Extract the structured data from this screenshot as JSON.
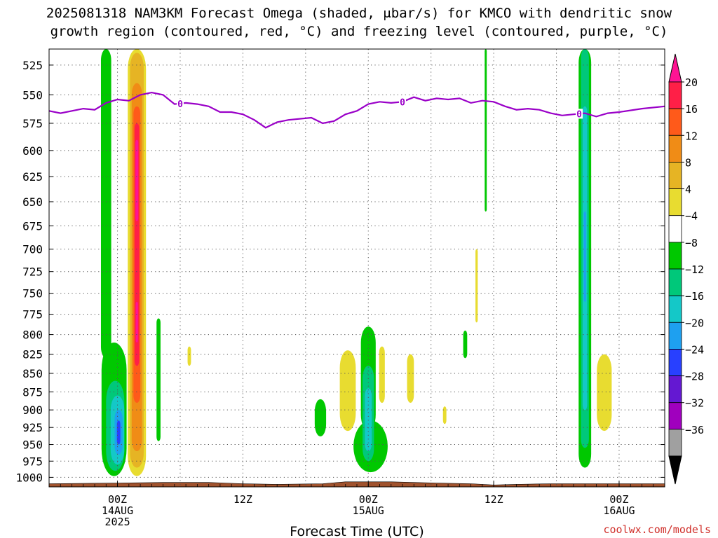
{
  "chart_data": {
    "type": "heatmap",
    "title_line1": "2025081318 NAM3KM Forecast Omega (shaded, μbar/s) for KMCO with dendritic snow",
    "title_line2": "growth region (contoured, red, °C) and freezing level (contoured, purple, °C)",
    "xlabel": "Forecast Time (UTC)",
    "credit": "coolwx.com/models",
    "y_axis": {
      "ylim": [
        1015,
        512
      ],
      "ticks": [
        525,
        550,
        575,
        600,
        625,
        650,
        675,
        700,
        725,
        750,
        775,
        800,
        825,
        850,
        875,
        900,
        925,
        950,
        975,
        1000
      ],
      "grid": true
    },
    "x_axis": {
      "xlim": [
        -6,
        48
      ],
      "major_ticks": [
        {
          "hour": 0,
          "lines": [
            "00Z",
            "14AUG",
            "2025"
          ]
        },
        {
          "hour": 11,
          "lines": [
            "12Z"
          ]
        },
        {
          "hour": 22,
          "lines": [
            "00Z",
            "15AUG"
          ]
        },
        {
          "hour": 33,
          "lines": [
            "12Z"
          ]
        },
        {
          "hour": 44,
          "lines": [
            "00Z",
            "16AUG"
          ]
        }
      ],
      "grid_hours": [
        0,
        5.5,
        11,
        16.5,
        22,
        27.5,
        33,
        38.5,
        44
      ],
      "grid": true
    },
    "colorbar": {
      "labels": [
        "20",
        "16",
        "12",
        "8",
        "4",
        "−4",
        "−8",
        "−12",
        "−16",
        "−20",
        "−24",
        "−28",
        "−32",
        "−36"
      ],
      "colors": [
        "#ff1f47",
        "#ff5a1a",
        "#f08c16",
        "#e6b424",
        "#e8dc30",
        "#ffffff",
        "#00c800",
        "#00c87a",
        "#14c8c8",
        "#1ea0f0",
        "#2840ff",
        "#6418d2",
        "#a000be",
        "#a0a0a0"
      ],
      "top_color": "#ff1493",
      "bottom_color": "#000000"
    },
    "freezing_level": {
      "color": "#9a00c8",
      "label": "0",
      "label_hours": [
        5.5,
        25,
        40.5
      ],
      "points": [
        [
          -6,
          564
        ],
        [
          -5,
          566
        ],
        [
          -3,
          562
        ],
        [
          -2,
          563
        ],
        [
          -1,
          557
        ],
        [
          0,
          554
        ],
        [
          1,
          555
        ],
        [
          2,
          550
        ],
        [
          3,
          548
        ],
        [
          4,
          550
        ],
        [
          5,
          558
        ],
        [
          6,
          557
        ],
        [
          7,
          558
        ],
        [
          8,
          560
        ],
        [
          9,
          565
        ],
        [
          10,
          565
        ],
        [
          11,
          567
        ],
        [
          12,
          572
        ],
        [
          13,
          579
        ],
        [
          14,
          574
        ],
        [
          15,
          572
        ],
        [
          17,
          570
        ],
        [
          18,
          575
        ],
        [
          19,
          573
        ],
        [
          20,
          567
        ],
        [
          21,
          564
        ],
        [
          22,
          558
        ],
        [
          23,
          556
        ],
        [
          24,
          557
        ],
        [
          25,
          556
        ],
        [
          26,
          552
        ],
        [
          27,
          555
        ],
        [
          28,
          553
        ],
        [
          29,
          554
        ],
        [
          30,
          553
        ],
        [
          31,
          557
        ],
        [
          32,
          555
        ],
        [
          33,
          556
        ],
        [
          34,
          560
        ],
        [
          35,
          563
        ],
        [
          36,
          562
        ],
        [
          37,
          563
        ],
        [
          38,
          566
        ],
        [
          39,
          568
        ],
        [
          40,
          567
        ],
        [
          41,
          566
        ],
        [
          42,
          569
        ],
        [
          43,
          566
        ],
        [
          44,
          565
        ],
        [
          46,
          562
        ],
        [
          48,
          560
        ]
      ]
    },
    "shaded_regions": [
      {
        "level": "-8",
        "color": "#00c800",
        "hour": -1.0,
        "width_h": 0.9,
        "p_top": 512,
        "p_bot": 830
      },
      {
        "level": "-8",
        "color": "#00c800",
        "hour": -0.3,
        "width_h": 2.2,
        "p_top": 810,
        "p_bot": 998
      },
      {
        "level": "-12",
        "color": "#00c87a",
        "hour": -0.2,
        "width_h": 1.6,
        "p_top": 860,
        "p_bot": 990
      },
      {
        "level": "-16",
        "color": "#14c8c8",
        "hour": 0.0,
        "width_h": 1.2,
        "p_top": 880,
        "p_bot": 980
      },
      {
        "level": "-20",
        "color": "#1ea0f0",
        "hour": 0.1,
        "width_h": 0.7,
        "p_top": 900,
        "p_bot": 965
      },
      {
        "level": "-24",
        "color": "#2840ff",
        "hour": 0.1,
        "width_h": 0.3,
        "p_top": 915,
        "p_bot": 950
      },
      {
        "level": "4",
        "color": "#e8dc30",
        "hour": 1.7,
        "width_h": 1.6,
        "p_top": 512,
        "p_bot": 998
      },
      {
        "level": "8",
        "color": "#e6b424",
        "hour": 1.7,
        "width_h": 1.2,
        "p_top": 515,
        "p_bot": 985
      },
      {
        "level": "12",
        "color": "#f08c16",
        "hour": 1.7,
        "width_h": 0.9,
        "p_top": 540,
        "p_bot": 960
      },
      {
        "level": "16",
        "color": "#ff5a1a",
        "hour": 1.7,
        "width_h": 0.6,
        "p_top": 560,
        "p_bot": 890
      },
      {
        "level": "20",
        "color": "#ff1f47",
        "hour": 1.7,
        "width_h": 0.4,
        "p_top": 575,
        "p_bot": 840
      },
      {
        "level": "20+",
        "color": "#ff1493",
        "hour": 1.7,
        "width_h": 0.25,
        "p_top": 590,
        "p_bot": 670
      },
      {
        "level": "20+",
        "color": "#ff1493",
        "hour": 1.7,
        "width_h": 0.2,
        "p_top": 760,
        "p_bot": 810
      },
      {
        "level": "-8",
        "color": "#00c800",
        "hour": 3.6,
        "width_h": 0.35,
        "p_top": 780,
        "p_bot": 945
      },
      {
        "level": "4",
        "color": "#e8dc30",
        "hour": 6.3,
        "width_h": 0.3,
        "p_top": 815,
        "p_bot": 840
      },
      {
        "level": "-8",
        "color": "#00c800",
        "hour": 17.8,
        "width_h": 1.0,
        "p_top": 885,
        "p_bot": 938
      },
      {
        "level": "4",
        "color": "#e8dc30",
        "hour": 20.2,
        "width_h": 1.4,
        "p_top": 820,
        "p_bot": 930
      },
      {
        "level": "-8",
        "color": "#00c800",
        "hour": 22.2,
        "width_h": 3.0,
        "p_top": 915,
        "p_bot": 992
      },
      {
        "level": "-8",
        "color": "#00c800",
        "hour": 22.0,
        "width_h": 1.3,
        "p_top": 790,
        "p_bot": 930
      },
      {
        "level": "-12",
        "color": "#00c87a",
        "hour": 22.0,
        "width_h": 1.0,
        "p_top": 840,
        "p_bot": 975
      },
      {
        "level": "-16",
        "color": "#14c8c8",
        "hour": 22.0,
        "width_h": 0.6,
        "p_top": 870,
        "p_bot": 960
      },
      {
        "level": "4",
        "color": "#e8dc30",
        "hour": 23.2,
        "width_h": 0.5,
        "p_top": 815,
        "p_bot": 890
      },
      {
        "level": "4",
        "color": "#e8dc30",
        "hour": 25.7,
        "width_h": 0.6,
        "p_top": 825,
        "p_bot": 890
      },
      {
        "level": "4",
        "color": "#e8dc30",
        "hour": 28.7,
        "width_h": 0.3,
        "p_top": 895,
        "p_bot": 920
      },
      {
        "level": "-8",
        "color": "#00c800",
        "hour": 30.5,
        "width_h": 0.35,
        "p_top": 795,
        "p_bot": 830
      },
      {
        "level": "4",
        "color": "#e8dc30",
        "hour": 31.5,
        "width_h": 0.2,
        "p_top": 700,
        "p_bot": 785
      },
      {
        "level": "-8",
        "color": "#00c800",
        "hour": 32.3,
        "width_h": 0.18,
        "p_top": 512,
        "p_bot": 660
      },
      {
        "level": "-8",
        "color": "#00c800",
        "hour": 41.0,
        "width_h": 1.1,
        "p_top": 512,
        "p_bot": 985
      },
      {
        "level": "-12",
        "color": "#00c87a",
        "hour": 41.0,
        "width_h": 0.7,
        "p_top": 512,
        "p_bot": 955
      },
      {
        "level": "-16",
        "color": "#14c8c8",
        "hour": 41.0,
        "width_h": 0.4,
        "p_top": 560,
        "p_bot": 900
      },
      {
        "level": "-20",
        "color": "#1ea0f0",
        "hour": 41.0,
        "width_h": 0.2,
        "p_top": 660,
        "p_bot": 760
      },
      {
        "level": "4",
        "color": "#e8dc30",
        "hour": 42.7,
        "width_h": 1.3,
        "p_top": 825,
        "p_bot": 930
      }
    ],
    "terrain": {
      "color": "#a0522d",
      "points": [
        [
          -6,
          1010
        ],
        [
          0,
          1009
        ],
        [
          4,
          1008
        ],
        [
          8,
          1008
        ],
        [
          11,
          1010
        ],
        [
          14,
          1011
        ],
        [
          18,
          1010
        ],
        [
          20,
          1007
        ],
        [
          24,
          1007
        ],
        [
          28,
          1009
        ],
        [
          31,
          1010
        ],
        [
          33,
          1012
        ],
        [
          35,
          1011
        ],
        [
          38,
          1010
        ],
        [
          42,
          1010
        ],
        [
          48,
          1010
        ]
      ]
    }
  }
}
